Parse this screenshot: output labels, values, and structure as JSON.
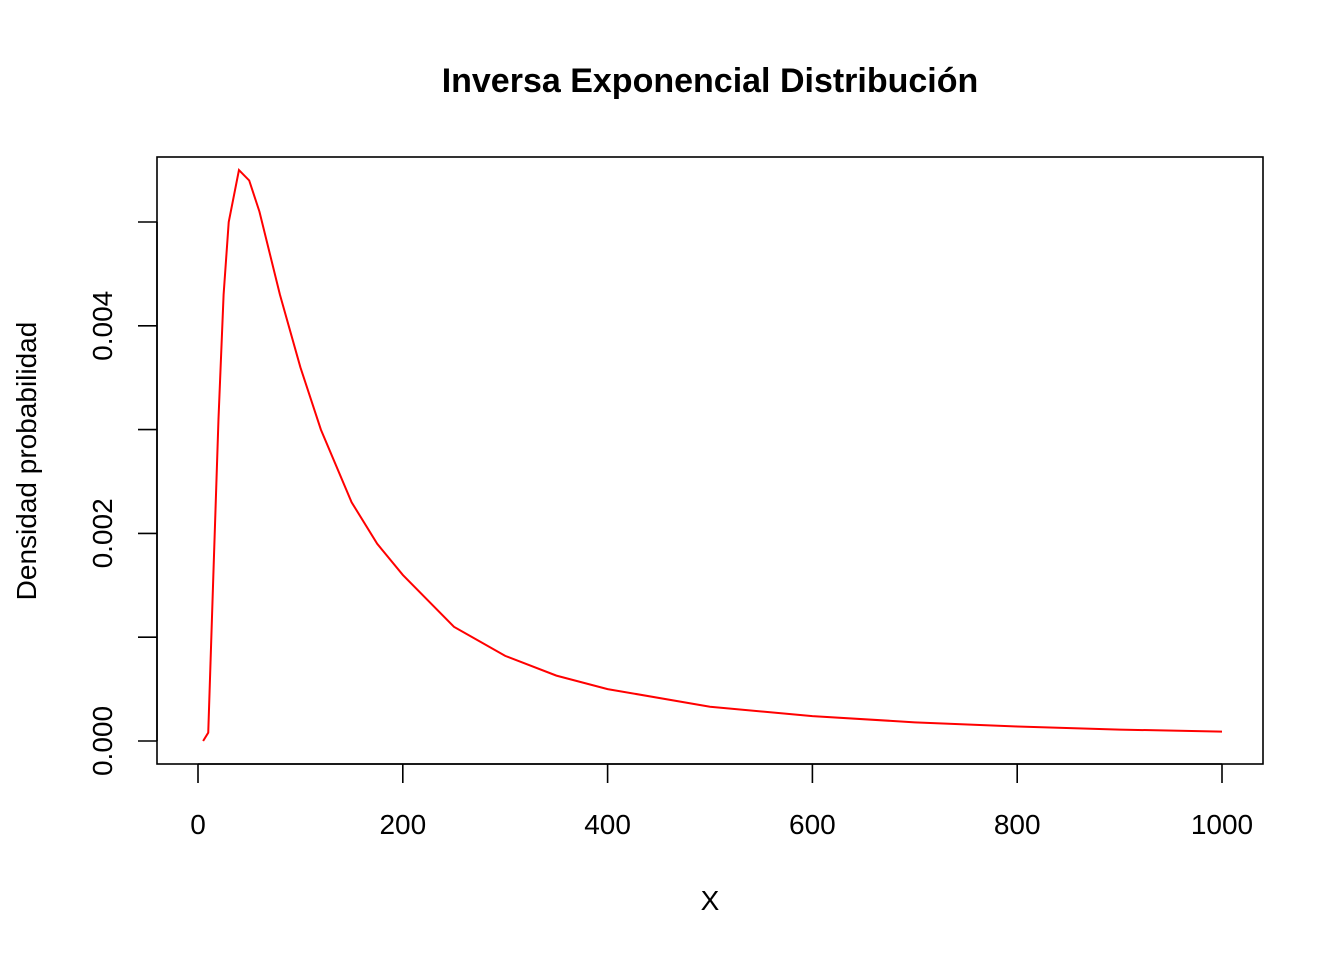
{
  "chart_data": {
    "type": "line",
    "title": "Inversa Exponencial Distribución",
    "xlabel": "X",
    "ylabel": "Densidad probabilidad",
    "xlim": [
      0,
      1000
    ],
    "ylim": [
      0,
      0.005
    ],
    "x_ticks": [
      0,
      200,
      400,
      600,
      800,
      1000
    ],
    "x_tick_labels": [
      "0",
      "200",
      "400",
      "600",
      "800",
      "1000"
    ],
    "y_ticks": [
      0,
      0.001,
      0.002,
      0.003,
      0.004,
      0.005
    ],
    "y_tick_labels": [
      "0.000",
      "",
      "0.002",
      "",
      "0.004",
      ""
    ],
    "grid": false,
    "legend": "none",
    "series": [
      {
        "color": "#ff0000",
        "x": [
          5,
          10,
          15,
          20,
          25,
          30,
          40,
          50,
          60,
          70,
          80,
          100,
          120,
          150,
          175,
          200,
          250,
          300,
          350,
          400,
          500,
          600,
          700,
          800,
          900,
          1000
        ],
        "y": [
          0.0,
          8e-05,
          0.0016,
          0.0031,
          0.0043,
          0.005,
          0.0055,
          0.0054,
          0.0051,
          0.0047,
          0.0043,
          0.0036,
          0.003,
          0.0023,
          0.0019,
          0.0016,
          0.0011,
          0.00082,
          0.00063,
          0.0005,
          0.00033,
          0.00024,
          0.00018,
          0.00014,
          0.00011,
          9e-05
        ]
      }
    ]
  }
}
